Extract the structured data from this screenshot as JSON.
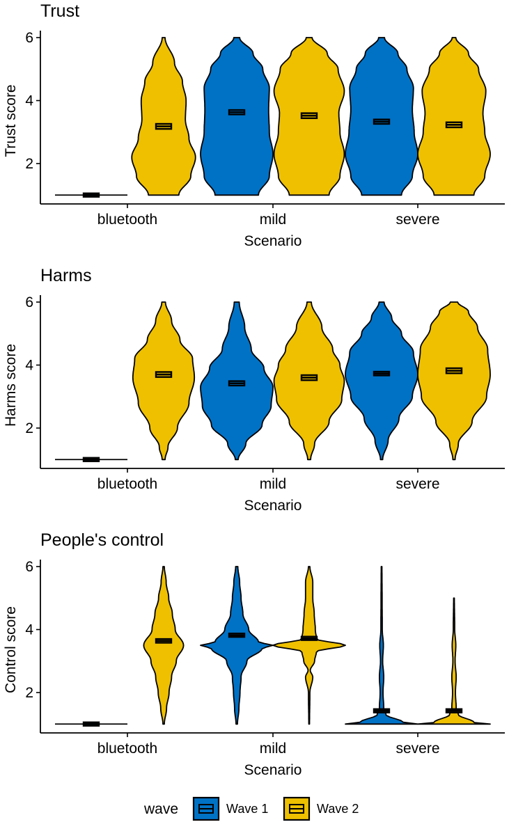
{
  "chart_data": [
    {
      "type": "violin",
      "title": "Trust",
      "xlabel": "Scenario",
      "ylabel": "Trust score",
      "ylim": [
        0.75,
        6.25
      ],
      "yticks": [
        2,
        4,
        6
      ],
      "categories": [
        "bluetooth",
        "mild",
        "severe"
      ],
      "series": [
        {
          "name": "Wave 1",
          "groups": [
            {
              "category": "bluetooth",
              "mean": 1.0,
              "se": 0.02,
              "min": 1,
              "max": 1,
              "density": []
            },
            {
              "category": "mild",
              "mean": 3.63,
              "se": 0.07,
              "min": 1,
              "max": 6,
              "density": [
                [
                  1.0,
                  0.6
                ],
                [
                  1.6,
                  0.9
                ],
                [
                  2.3,
                  1.0
                ],
                [
                  3.0,
                  0.9
                ],
                [
                  3.7,
                  0.88
                ],
                [
                  4.4,
                  0.9
                ],
                [
                  5.0,
                  0.72
                ],
                [
                  5.5,
                  0.45
                ],
                [
                  6.0,
                  0.08
                ]
              ]
            },
            {
              "category": "severe",
              "mean": 3.33,
              "se": 0.07,
              "min": 1,
              "max": 6,
              "density": [
                [
                  1.0,
                  0.55
                ],
                [
                  1.6,
                  0.85
                ],
                [
                  2.3,
                  1.0
                ],
                [
                  3.0,
                  0.9
                ],
                [
                  3.7,
                  0.85
                ],
                [
                  4.4,
                  0.88
                ],
                [
                  5.0,
                  0.7
                ],
                [
                  5.5,
                  0.45
                ],
                [
                  6.0,
                  0.08
                ]
              ]
            }
          ]
        },
        {
          "name": "Wave 2",
          "groups": [
            {
              "category": "bluetooth",
              "mean": 3.18,
              "se": 0.08,
              "min": 1,
              "max": 6,
              "density": [
                [
                  1.0,
                  0.42
                ],
                [
                  1.6,
                  0.75
                ],
                [
                  2.2,
                  0.88
                ],
                [
                  2.8,
                  0.7
                ],
                [
                  3.4,
                  0.6
                ],
                [
                  4.0,
                  0.62
                ],
                [
                  4.6,
                  0.52
                ],
                [
                  5.2,
                  0.3
                ],
                [
                  6.0,
                  0.04
                ]
              ]
            },
            {
              "category": "mild",
              "mean": 3.52,
              "se": 0.08,
              "min": 1,
              "max": 6,
              "density": [
                [
                  1.0,
                  0.55
                ],
                [
                  1.6,
                  0.85
                ],
                [
                  2.3,
                  0.97
                ],
                [
                  3.0,
                  0.85
                ],
                [
                  3.6,
                  0.82
                ],
                [
                  4.3,
                  0.97
                ],
                [
                  5.0,
                  0.8
                ],
                [
                  5.5,
                  0.5
                ],
                [
                  6.0,
                  0.08
                ]
              ]
            },
            {
              "category": "severe",
              "mean": 3.23,
              "se": 0.08,
              "min": 1,
              "max": 6,
              "density": [
                [
                  1.0,
                  0.55
                ],
                [
                  1.6,
                  0.85
                ],
                [
                  2.3,
                  1.0
                ],
                [
                  3.0,
                  0.85
                ],
                [
                  3.6,
                  0.8
                ],
                [
                  4.3,
                  0.88
                ],
                [
                  5.0,
                  0.68
                ],
                [
                  5.5,
                  0.4
                ],
                [
                  6.0,
                  0.05
                ]
              ]
            }
          ]
        }
      ]
    },
    {
      "type": "violin",
      "title": "Harms",
      "xlabel": "Scenario",
      "ylabel": "Harms score",
      "ylim": [
        0.75,
        6.25
      ],
      "yticks": [
        2,
        4,
        6
      ],
      "categories": [
        "bluetooth",
        "mild",
        "severe"
      ],
      "series": [
        {
          "name": "Wave 1",
          "groups": [
            {
              "category": "bluetooth",
              "mean": 1.0,
              "se": 0.02,
              "min": 1,
              "max": 1,
              "density": []
            },
            {
              "category": "mild",
              "mean": 3.42,
              "se": 0.07,
              "min": 1,
              "max": 6,
              "density": [
                [
                  1.0,
                  0.04
                ],
                [
                  1.5,
                  0.25
                ],
                [
                  2.1,
                  0.7
                ],
                [
                  2.7,
                  0.95
                ],
                [
                  3.3,
                  1.0
                ],
                [
                  3.9,
                  0.75
                ],
                [
                  4.5,
                  0.4
                ],
                [
                  5.2,
                  0.22
                ],
                [
                  6.0,
                  0.07
                ]
              ]
            },
            {
              "category": "severe",
              "mean": 3.73,
              "se": 0.06,
              "min": 1,
              "max": 6,
              "density": [
                [
                  1.0,
                  0.03
                ],
                [
                  1.6,
                  0.18
                ],
                [
                  2.3,
                  0.48
                ],
                [
                  3.0,
                  0.85
                ],
                [
                  3.7,
                  1.0
                ],
                [
                  4.4,
                  0.88
                ],
                [
                  5.0,
                  0.55
                ],
                [
                  5.5,
                  0.28
                ],
                [
                  6.0,
                  0.07
                ]
              ]
            }
          ]
        },
        {
          "name": "Wave 2",
          "groups": [
            {
              "category": "bluetooth",
              "mean": 3.7,
              "se": 0.08,
              "min": 1,
              "max": 6,
              "density": [
                [
                  1.0,
                  0.04
                ],
                [
                  1.4,
                  0.12
                ],
                [
                  2.0,
                  0.38
                ],
                [
                  2.8,
                  0.7
                ],
                [
                  3.6,
                  0.85
                ],
                [
                  4.2,
                  0.8
                ],
                [
                  4.8,
                  0.45
                ],
                [
                  5.4,
                  0.22
                ],
                [
                  6.0,
                  0.05
                ]
              ]
            },
            {
              "category": "mild",
              "mean": 3.6,
              "se": 0.08,
              "min": 1,
              "max": 6,
              "density": [
                [
                  1.0,
                  0.04
                ],
                [
                  1.5,
                  0.15
                ],
                [
                  2.2,
                  0.55
                ],
                [
                  2.9,
                  0.9
                ],
                [
                  3.5,
                  0.97
                ],
                [
                  4.0,
                  0.85
                ],
                [
                  4.5,
                  0.65
                ],
                [
                  5.2,
                  0.35
                ],
                [
                  6.0,
                  0.06
                ]
              ]
            },
            {
              "category": "severe",
              "mean": 3.82,
              "se": 0.08,
              "min": 1,
              "max": 6,
              "density": [
                [
                  1.0,
                  0.03
                ],
                [
                  1.5,
                  0.12
                ],
                [
                  2.2,
                  0.5
                ],
                [
                  3.0,
                  0.9
                ],
                [
                  3.7,
                  1.0
                ],
                [
                  4.5,
                  0.93
                ],
                [
                  5.2,
                  0.65
                ],
                [
                  5.7,
                  0.4
                ],
                [
                  6.0,
                  0.1
                ]
              ]
            }
          ]
        }
      ]
    },
    {
      "type": "violin",
      "title": "People's control",
      "xlabel": "Scenario",
      "ylabel": "Control score",
      "ylim": [
        0.75,
        6.25
      ],
      "yticks": [
        2,
        4,
        6
      ],
      "categories": [
        "bluetooth",
        "mild",
        "severe"
      ],
      "series": [
        {
          "name": "Wave 1",
          "groups": [
            {
              "category": "bluetooth",
              "mean": 1.0,
              "se": 0.02,
              "min": 1,
              "max": 1,
              "density": []
            },
            {
              "category": "mild",
              "mean": 3.82,
              "se": 0.05,
              "min": 1,
              "max": 6,
              "density": [
                [
                  1.0,
                  0.02
                ],
                [
                  1.5,
                  0.06
                ],
                [
                  2.0,
                  0.09
                ],
                [
                  2.5,
                  0.12
                ],
                [
                  3.0,
                  0.28
                ],
                [
                  3.4,
                  0.7
                ],
                [
                  3.5,
                  1.0
                ],
                [
                  3.6,
                  0.6
                ],
                [
                  4.0,
                  0.33
                ],
                [
                  4.5,
                  0.17
                ],
                [
                  5.0,
                  0.12
                ],
                [
                  5.5,
                  0.08
                ],
                [
                  6.0,
                  0.03
                ]
              ]
            },
            {
              "category": "severe",
              "mean": 1.42,
              "se": 0.05,
              "min": 1,
              "max": 6,
              "density": [
                [
                  1.0,
                  1.0
                ],
                [
                  1.05,
                  0.6
                ],
                [
                  1.3,
                  0.12
                ],
                [
                  1.5,
                  0.06
                ],
                [
                  2.0,
                  0.04
                ],
                [
                  2.5,
                  0.06
                ],
                [
                  3.0,
                  0.03
                ],
                [
                  3.5,
                  0.05
                ],
                [
                  4.0,
                  0.02
                ],
                [
                  5.0,
                  0.015
                ],
                [
                  6.0,
                  0.01
                ]
              ]
            }
          ]
        },
        {
          "name": "Wave 2",
          "groups": [
            {
              "category": "bluetooth",
              "mean": 3.64,
              "se": 0.06,
              "min": 1,
              "max": 6,
              "density": [
                [
                  1.0,
                  0.02
                ],
                [
                  1.5,
                  0.08
                ],
                [
                  2.0,
                  0.15
                ],
                [
                  2.5,
                  0.22
                ],
                [
                  3.0,
                  0.35
                ],
                [
                  3.5,
                  0.55
                ],
                [
                  4.0,
                  0.32
                ],
                [
                  4.5,
                  0.24
                ],
                [
                  5.0,
                  0.14
                ],
                [
                  5.5,
                  0.07
                ],
                [
                  6.0,
                  0.02
                ]
              ]
            },
            {
              "category": "mild",
              "mean": 3.72,
              "se": 0.05,
              "min": 1,
              "max": 6,
              "density": [
                [
                  1.0,
                  0.01
                ],
                [
                  2.0,
                  0.02
                ],
                [
                  2.5,
                  0.1
                ],
                [
                  2.7,
                  0.03
                ],
                [
                  3.0,
                  0.15
                ],
                [
                  3.3,
                  0.2
                ],
                [
                  3.5,
                  1.0
                ],
                [
                  3.7,
                  0.2
                ],
                [
                  4.0,
                  0.17
                ],
                [
                  4.5,
                  0.14
                ],
                [
                  5.0,
                  0.1
                ],
                [
                  5.5,
                  0.1
                ],
                [
                  6.0,
                  0.02
                ]
              ]
            },
            {
              "category": "severe",
              "mean": 1.42,
              "se": 0.05,
              "min": 1,
              "max": 5,
              "density": [
                [
                  1.0,
                  1.0
                ],
                [
                  1.05,
                  0.55
                ],
                [
                  1.3,
                  0.12
                ],
                [
                  1.5,
                  0.06
                ],
                [
                  2.0,
                  0.04
                ],
                [
                  2.5,
                  0.06
                ],
                [
                  3.0,
                  0.03
                ],
                [
                  3.5,
                  0.05
                ],
                [
                  4.0,
                  0.02
                ],
                [
                  5.0,
                  0.01
                ]
              ]
            }
          ]
        }
      ]
    }
  ],
  "legend": {
    "title": "wave",
    "items": [
      {
        "label": "Wave 1",
        "color": "#0072C6"
      },
      {
        "label": "Wave 2",
        "color": "#EEC000"
      }
    ]
  }
}
